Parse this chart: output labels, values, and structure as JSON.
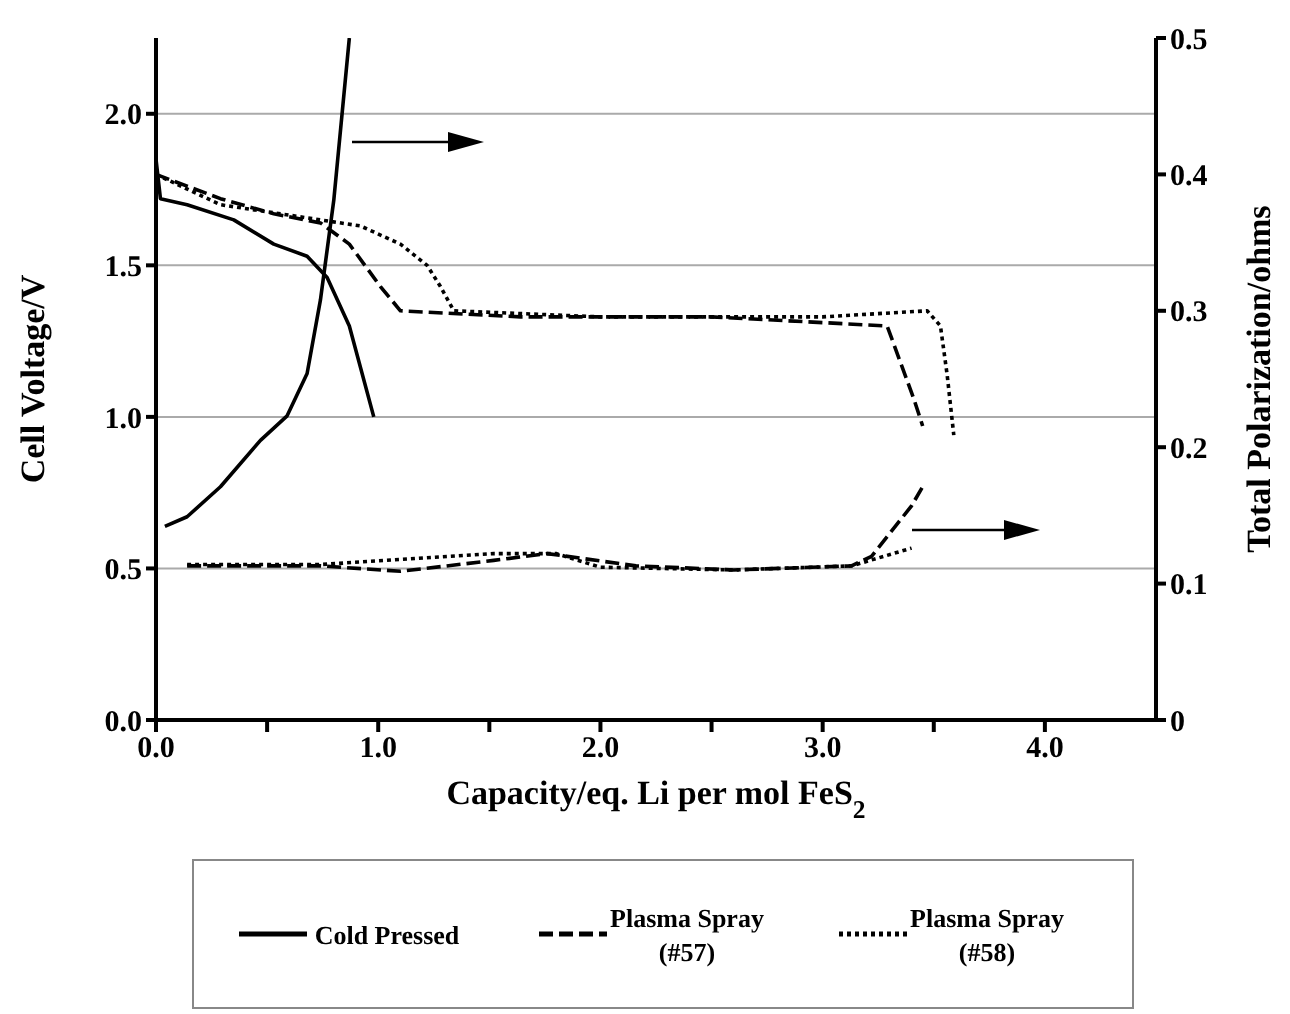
{
  "chart_data": {
    "type": "line",
    "xlabel": "Capacity/eq. Li per mol FeS$_{2}$",
    "ylabel": "Cell Voltage/V",
    "y2label": "Total Polarization/ohms",
    "xlim": [
      0,
      4.5
    ],
    "xticks": [
      {
        "value": 0,
        "label": "0.0"
      },
      {
        "value": 0.5,
        "label": null
      },
      {
        "value": 1,
        "label": "1.0"
      },
      {
        "value": 1.5,
        "label": null
      },
      {
        "value": 2,
        "label": "2.0"
      },
      {
        "value": 2.5,
        "label": null
      },
      {
        "value": 3,
        "label": "3.0"
      },
      {
        "value": 3.5,
        "label": null
      },
      {
        "value": 4,
        "label": "4.0"
      }
    ],
    "ylim": [
      0,
      2.25
    ],
    "yticks": [
      {
        "value": 0,
        "label": "0.0"
      },
      {
        "value": 0.5,
        "label": "0.5"
      },
      {
        "value": 1,
        "label": "1.0"
      },
      {
        "value": 1.5,
        "label": "1.5"
      },
      {
        "value": 2,
        "label": "2.0"
      }
    ],
    "y2lim": [
      0,
      0.5
    ],
    "y2ticks": [
      0,
      0.1,
      0.2,
      0.3,
      0.4,
      0.5
    ],
    "grid": "y",
    "legend": "bottom",
    "marker": "none",
    "series": [
      {
        "name": "Cold Pressed",
        "color": "#000000",
        "line_style": "solid",
        "x": [
          0,
          0.02,
          0.14,
          0.35,
          0.53,
          0.68,
          0.77,
          0.87,
          0.98
        ],
        "values": [
          1.85,
          1.72,
          1.7,
          1.65,
          1.57,
          1.53,
          1.46,
          1.3,
          1.0
        ]
      },
      {
        "name": "Plasma Spray (#57)",
        "color": "#000000",
        "line_style": "dashed",
        "x": [
          0,
          0.29,
          0.53,
          0.74,
          0.87,
          1.01,
          1.1,
          1.64,
          2.5,
          3.29,
          3.41,
          3.45
        ],
        "values": [
          1.8,
          1.72,
          1.67,
          1.64,
          1.57,
          1.43,
          1.35,
          1.33,
          1.33,
          1.3,
          1.06,
          0.97
        ]
      },
      {
        "name": "Plasma Spray (#58)",
        "color": "#000000",
        "line_style": "dotted",
        "x": [
          0,
          0.29,
          0.74,
          0.92,
          1.1,
          1.22,
          1.28,
          1.34,
          2.0,
          3.0,
          3.47,
          3.53,
          3.56,
          3.59
        ],
        "values": [
          1.8,
          1.7,
          1.65,
          1.63,
          1.57,
          1.5,
          1.43,
          1.35,
          1.33,
          1.33,
          1.35,
          1.3,
          1.14,
          0.94
        ]
      },
      {
        "color": "#000000",
        "line_style": "solid",
        "axis": "y2",
        "x": [
          0.04,
          0.14,
          0.29,
          0.47,
          0.59,
          0.68,
          0.74,
          0.8,
          0.87
        ],
        "values": [
          0.142,
          0.149,
          0.171,
          0.205,
          0.223,
          0.254,
          0.308,
          0.381,
          0.5
        ]
      },
      {
        "color": "#000000",
        "line_style": "dashed",
        "axis": "y2",
        "x": [
          0.14,
          0.74,
          1.1,
          1.52,
          1.76,
          2.16,
          2.6,
          3.13,
          3.22,
          3.4,
          3.45
        ],
        "values": [
          0.113,
          0.113,
          0.109,
          0.117,
          0.122,
          0.113,
          0.11,
          0.113,
          0.12,
          0.157,
          0.171
        ]
      },
      {
        "color": "#000000",
        "line_style": "dotted",
        "axis": "y2",
        "x": [
          0.14,
          0.74,
          1.52,
          1.8,
          2.0,
          2.6,
          3.13,
          3.4
        ],
        "values": [
          0.114,
          0.114,
          0.122,
          0.122,
          0.112,
          0.11,
          0.113,
          0.126
        ]
      }
    ]
  }
}
